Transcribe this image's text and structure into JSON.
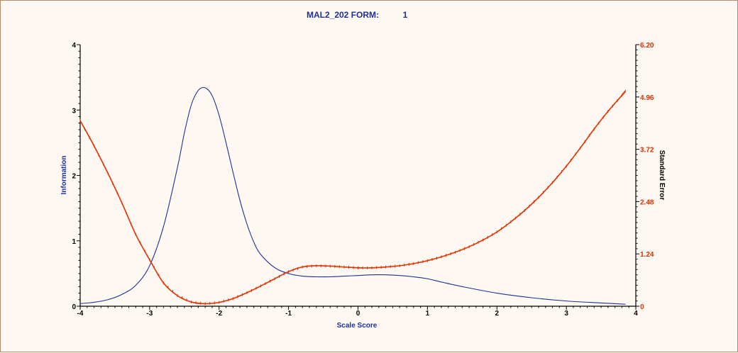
{
  "chart_data": {
    "type": "line",
    "title_left": "MAL2_202  FORM:",
    "title_right": "1",
    "xlabel": "Scale Score",
    "ylabel_left": "Information",
    "ylabel_right": "Standard Error",
    "xlim": [
      -4,
      4
    ],
    "ylim_left": [
      0,
      4
    ],
    "ylim_right": [
      0,
      6.2
    ],
    "x_ticks": [
      "-4",
      "-3",
      "-2",
      "-1",
      "0",
      "1",
      "2",
      "3",
      "4"
    ],
    "y_left_ticks": [
      "0",
      "1",
      "2",
      "3",
      "4"
    ],
    "y_right_ticks": [
      "0",
      "1.24",
      "2.48",
      "3.72",
      "4.96",
      "6.20"
    ],
    "grid": false,
    "colors": {
      "information": "#1f2f99",
      "standard_error": "#e03000",
      "background": "#fdf9f2",
      "axis": "#000000"
    },
    "series": [
      {
        "axis": "left",
        "x": [
          -4.0,
          -3.8,
          -3.6,
          -3.4,
          -3.2,
          -3.0,
          -2.8,
          -2.6,
          -2.5,
          -2.4,
          -2.3,
          -2.2,
          -2.1,
          -2.0,
          -1.9,
          -1.8,
          -1.7,
          -1.6,
          -1.5,
          -1.4,
          -1.2,
          -1.0,
          -0.8,
          -0.6,
          -0.4,
          -0.2,
          0.0,
          0.2,
          0.4,
          0.6,
          0.8,
          1.0,
          1.2,
          1.5,
          2.0,
          2.5,
          3.0,
          3.5,
          3.85
        ],
        "values": [
          0.04,
          0.06,
          0.1,
          0.18,
          0.32,
          0.62,
          1.22,
          2.12,
          2.65,
          3.08,
          3.3,
          3.34,
          3.22,
          2.92,
          2.5,
          2.05,
          1.62,
          1.26,
          0.98,
          0.79,
          0.59,
          0.5,
          0.46,
          0.45,
          0.45,
          0.46,
          0.47,
          0.48,
          0.48,
          0.47,
          0.45,
          0.42,
          0.37,
          0.3,
          0.2,
          0.13,
          0.08,
          0.05,
          0.03
        ]
      },
      {
        "axis": "right",
        "x": [
          -4.0,
          -3.8,
          -3.6,
          -3.4,
          -3.2,
          -3.0,
          -2.8,
          -2.6,
          -2.4,
          -2.2,
          -2.0,
          -1.8,
          -1.6,
          -1.4,
          -1.2,
          -1.0,
          -0.8,
          -0.6,
          -0.4,
          -0.2,
          0.0,
          0.2,
          0.4,
          0.6,
          0.8,
          1.0,
          1.2,
          1.4,
          1.6,
          1.8,
          2.0,
          2.2,
          2.4,
          2.6,
          2.8,
          3.0,
          3.2,
          3.4,
          3.6,
          3.8,
          3.85
        ],
        "values": [
          4.4,
          3.8,
          3.15,
          2.45,
          1.7,
          1.1,
          0.55,
          0.25,
          0.1,
          0.06,
          0.09,
          0.18,
          0.32,
          0.48,
          0.65,
          0.82,
          0.93,
          0.96,
          0.95,
          0.93,
          0.91,
          0.91,
          0.93,
          0.96,
          1.01,
          1.08,
          1.17,
          1.28,
          1.41,
          1.57,
          1.76,
          2.0,
          2.27,
          2.58,
          2.93,
          3.32,
          3.75,
          4.2,
          4.62,
          5.0,
          5.1
        ]
      }
    ]
  }
}
